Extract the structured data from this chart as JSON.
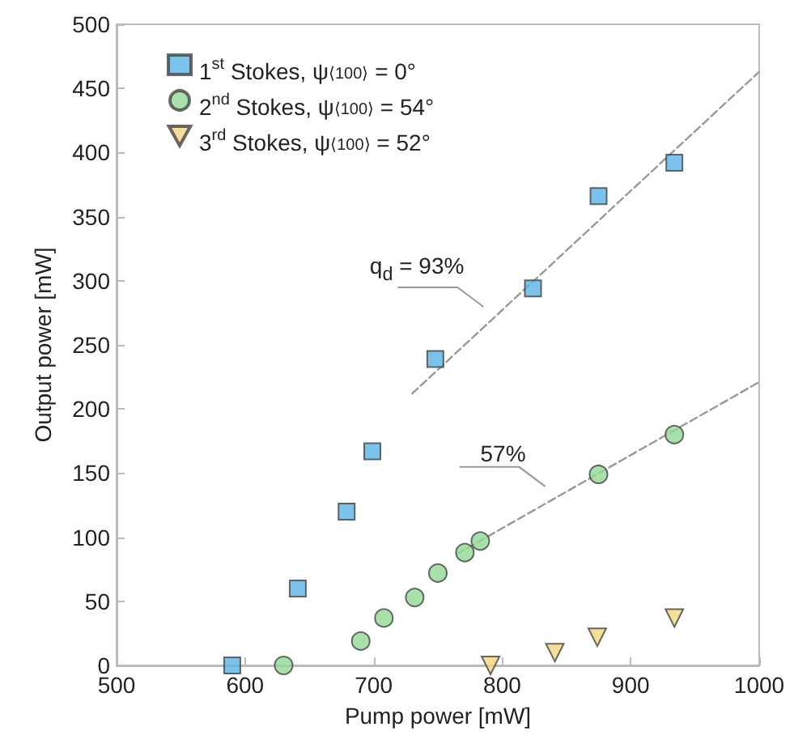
{
  "chart_data": {
    "type": "scatter",
    "xlabel": "Pump power [mW]",
    "ylabel": "Output power [mW]",
    "xlim": [
      500,
      1000
    ],
    "xticks": [
      500,
      600,
      700,
      800,
      900,
      1000
    ],
    "ylim": [
      0,
      500
    ],
    "yticks": [
      0,
      50,
      100,
      150,
      200,
      250,
      300,
      350,
      400,
      450,
      500
    ],
    "grid": false,
    "legend": "top left",
    "series": [
      {
        "name": "1$^{st}$ Stokes, ψ$_{⟨100⟩}$ = 0°",
        "color": "#5ab4e5",
        "marker": "square",
        "x": [
          590,
          641,
          679,
          699,
          748,
          824,
          875,
          934
        ],
        "values": [
          0,
          60,
          120,
          167,
          239,
          294,
          366,
          392
        ]
      },
      {
        "name": "2$^{nd}$ Stokes, ψ$_{⟨100⟩}$ = 54°",
        "color": "#92d894",
        "marker": "circle",
        "x": [
          630,
          690,
          708,
          732,
          750,
          771,
          783,
          875,
          934
        ],
        "values": [
          0,
          19,
          37,
          53,
          72,
          88,
          97,
          149,
          180
        ]
      },
      {
        "name": "3$^{rd}$ Stokes, ψ$_{⟨100⟩}$ = 52°",
        "color": "#f2d77e",
        "marker": "triangle",
        "x": [
          791,
          841,
          874,
          934
        ],
        "values": [
          0,
          10,
          22,
          37
        ]
      },
      {
        "type": "line",
        "color": "#999999",
        "line_style": "dashed",
        "marker": "none",
        "x": [
          730,
          1000
        ],
        "values": [
          212,
          463
        ]
      },
      {
        "type": "line",
        "color": "#999999",
        "line_style": "dashed",
        "marker": "none",
        "x": [
          765,
          1000
        ],
        "values": [
          87,
          221
        ]
      }
    ],
    "annotations": [
      {
        "text": "q$_{d}$ = 93%",
        "x": 788,
        "y": 267
      },
      {
        "text": "57%",
        "x": 836,
        "y": 127
      }
    ]
  }
}
